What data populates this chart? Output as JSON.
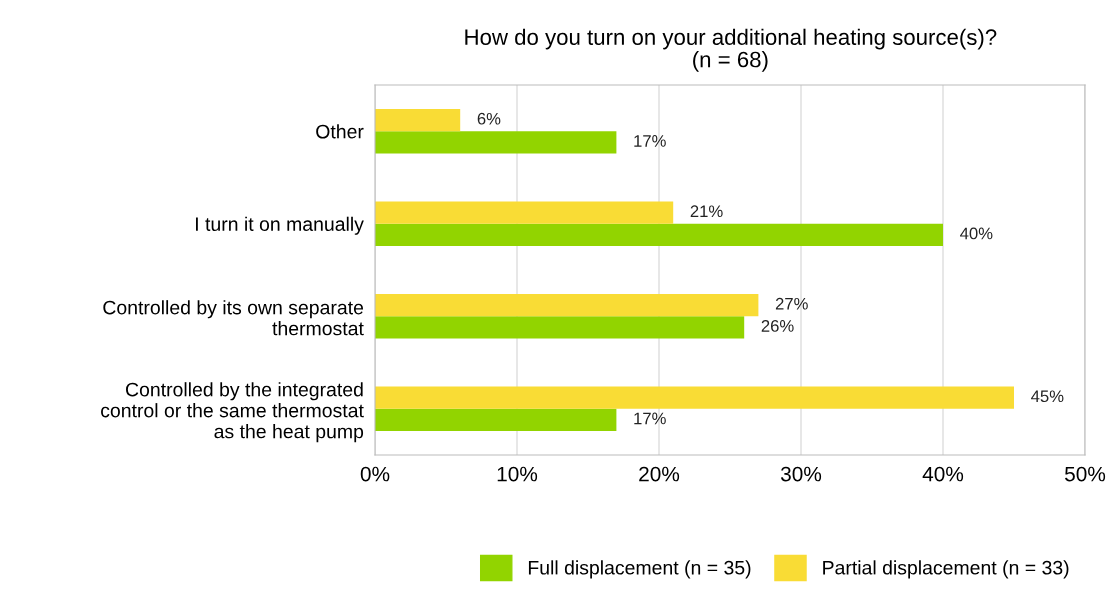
{
  "chart_data": {
    "type": "bar",
    "orientation": "horizontal",
    "title": "How do you turn on your additional heating source(s)?\n(n = 68)",
    "categories": [
      "Other",
      "I turn it on manually",
      "Controlled by its own separate\nthermostat",
      "Controlled by the integrated\ncontrol or the same thermostat\nas the heat pump"
    ],
    "series": [
      {
        "name": "Full displacement (n = 35)",
        "color": "#92d400",
        "values": [
          17,
          40,
          26,
          17
        ],
        "value_labels": [
          "17%",
          "40%",
          "26%",
          "17%"
        ]
      },
      {
        "name": "Partial displacement (n = 33)",
        "color": "#f9dc35",
        "values": [
          6,
          21,
          27,
          45
        ],
        "value_labels": [
          "6%",
          "21%",
          "27%",
          "45%"
        ]
      }
    ],
    "xlim": [
      0,
      50
    ],
    "xticks": [
      {
        "value": 0,
        "label": "0%"
      },
      {
        "value": 10,
        "label": "10%"
      },
      {
        "value": 20,
        "label": "20%"
      },
      {
        "value": 30,
        "label": "30%"
      },
      {
        "value": 40,
        "label": "40%"
      },
      {
        "value": 50,
        "label": "50%"
      }
    ],
    "grid": "x",
    "legend": "bottom"
  }
}
